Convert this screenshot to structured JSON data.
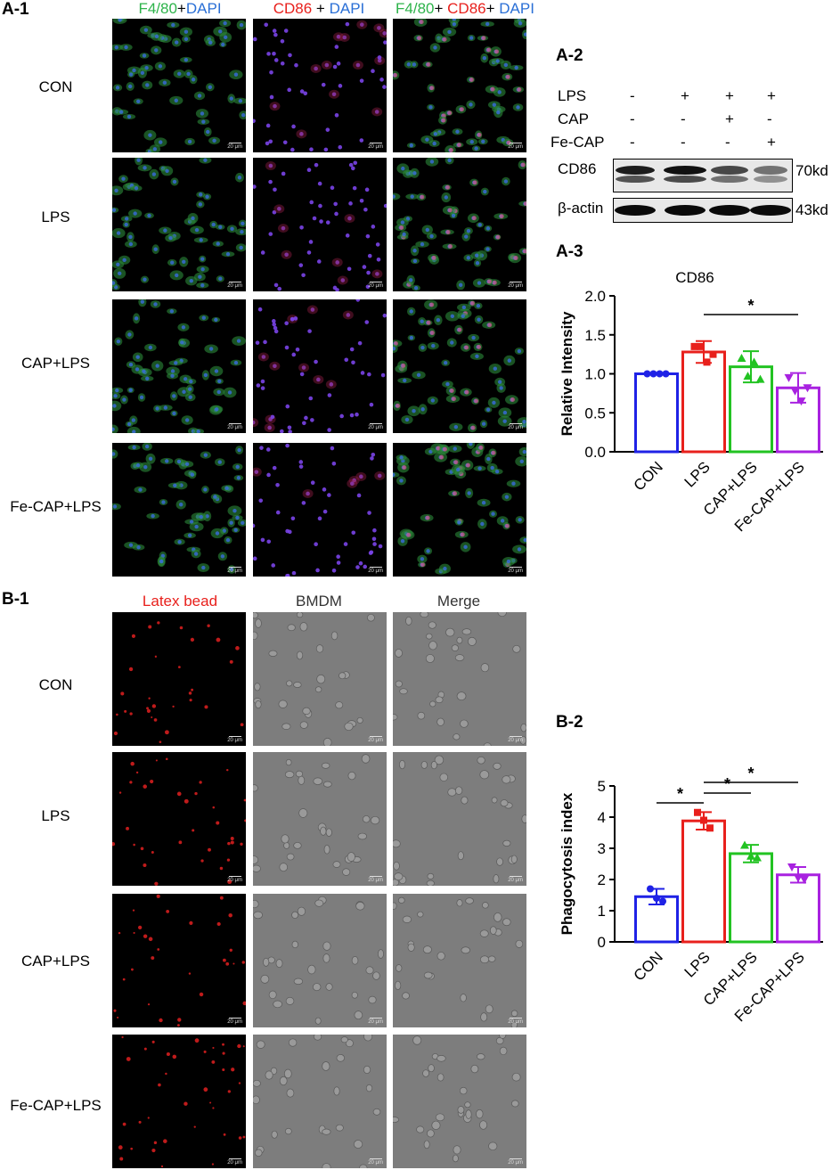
{
  "panels": {
    "a1": "A-1",
    "a2": "A-2",
    "a3": "A-3",
    "b1": "B-1",
    "b2": "B-2"
  },
  "a1": {
    "col_heads": [
      [
        {
          "t": "F4/80",
          "c": "#2db34a"
        },
        {
          "t": "+",
          "c": "#000"
        },
        {
          "t": "DAPI",
          "c": "#2a6fd6"
        }
      ],
      [
        {
          "t": "CD86",
          "c": "#e8201c"
        },
        {
          "t": " + ",
          "c": "#000"
        },
        {
          "t": "DAPI",
          "c": "#2a6fd6"
        }
      ],
      [
        {
          "t": "F4/80",
          "c": "#2db34a"
        },
        {
          "t": "+ ",
          "c": "#000"
        },
        {
          "t": "CD86",
          "c": "#e8201c"
        },
        {
          "t": "+ ",
          "c": "#000"
        },
        {
          "t": "DAPI",
          "c": "#2a6fd6"
        }
      ]
    ],
    "rows": [
      "CON",
      "LPS",
      "CAP+LPS",
      "Fe-CAP+LPS"
    ],
    "scale": "20 μm"
  },
  "b1": {
    "col_heads": [
      [
        {
          "t": "Latex bead",
          "c": "#e8201c"
        }
      ],
      [
        {
          "t": "BMDM",
          "c": "#333"
        }
      ],
      [
        {
          "t": "Merge",
          "c": "#333"
        }
      ]
    ],
    "rows": [
      "CON",
      "LPS",
      "CAP+LPS",
      "Fe-CAP+LPS"
    ],
    "scale": "20 μm"
  },
  "a2": {
    "conditions": [
      {
        "label": "LPS",
        "values": [
          "-",
          "+",
          "+",
          "+"
        ]
      },
      {
        "label": "CAP",
        "values": [
          "-",
          "-",
          "+",
          "-"
        ]
      },
      {
        "label": "Fe-CAP",
        "values": [
          "-",
          "-",
          "-",
          "+"
        ]
      }
    ],
    "bands": [
      {
        "label": "CD86",
        "kd": "70kd"
      },
      {
        "label": "β-actin",
        "kd": "43kd"
      }
    ]
  },
  "chart_data": [
    {
      "type": "bar",
      "title": "CD86",
      "ylabel": "Relative Intensity",
      "xlabel": "",
      "categories": [
        "CON",
        "LPS",
        "CAP+LPS",
        "Fe-CAP+LPS"
      ],
      "values": [
        1.0,
        1.28,
        1.09,
        0.82
      ],
      "errors": [
        0.0,
        0.14,
        0.2,
        0.19
      ],
      "points": [
        [
          1.0,
          1.0,
          1.0,
          1.0
        ],
        [
          1.35,
          1.35,
          1.15,
          1.25
        ],
        [
          1.2,
          0.97,
          1.15,
          0.93
        ],
        [
          0.95,
          0.78,
          0.65,
          0.82
        ]
      ],
      "colors": [
        "#1f22e6",
        "#e8201c",
        "#22c322",
        "#a822e0"
      ],
      "markers": [
        "circle",
        "square",
        "triangle",
        "down-triangle"
      ],
      "ylim": [
        0,
        2.0
      ],
      "yticks": [
        "0.0",
        "0.5",
        "1.0",
        "1.5",
        "2.0"
      ],
      "significance": [
        {
          "from": 1,
          "to": 3,
          "label": "*"
        }
      ]
    },
    {
      "type": "bar",
      "title": "",
      "ylabel": "Phagocytosis index",
      "xlabel": "",
      "categories": [
        "CON",
        "LPS",
        "CAP+LPS",
        "Fe-CAP+LPS"
      ],
      "values": [
        1.45,
        3.88,
        2.83,
        2.15
      ],
      "errors": [
        0.25,
        0.28,
        0.28,
        0.25
      ],
      "points": [
        [
          1.7,
          1.4,
          1.3
        ],
        [
          4.15,
          3.9,
          3.65
        ],
        [
          3.1,
          2.75,
          2.7
        ],
        [
          2.4,
          2.05,
          2.0
        ]
      ],
      "colors": [
        "#1f22e6",
        "#e8201c",
        "#22c322",
        "#a822e0"
      ],
      "markers": [
        "circle",
        "square",
        "triangle",
        "down-triangle"
      ],
      "ylim": [
        0,
        5
      ],
      "yticks": [
        "0",
        "1",
        "2",
        "3",
        "4",
        "5"
      ],
      "significance": [
        {
          "from": 0,
          "to": 1,
          "label": "*"
        },
        {
          "from": 1,
          "to": 2,
          "label": "*"
        },
        {
          "from": 1,
          "to": 3,
          "label": "*"
        }
      ]
    }
  ]
}
